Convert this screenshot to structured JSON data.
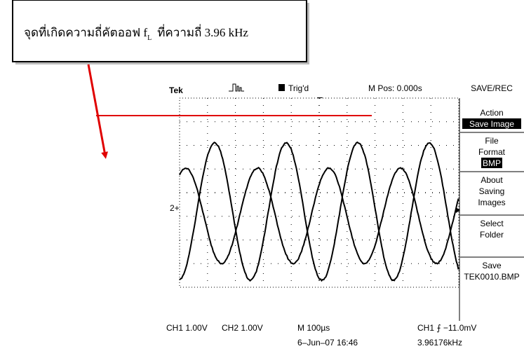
{
  "annotation": {
    "text_before": "จุดที่เกิดความถี่คัตออฟ f",
    "subscript": "L",
    "text_after": "ที่ความถี่ 3.96 kHz"
  },
  "scope": {
    "header": {
      "brand": "Tek",
      "trigger": "Trig'd",
      "position": "M Pos: 0.000s",
      "menu_title": "SAVE/REC"
    },
    "menu": [
      {
        "lines": [
          "Action"
        ],
        "highlight": "Save Image"
      },
      {
        "lines": [
          "File",
          "Format"
        ],
        "highlight": "BMP"
      },
      {
        "lines": [
          "About",
          "Saving",
          "Images"
        ]
      },
      {
        "lines": [
          "Select",
          "Folder"
        ]
      },
      {
        "lines": [
          "Save",
          "TEK0010.BMP"
        ]
      }
    ],
    "channel_marker": "2+",
    "footer": {
      "ch1": "CH1  1.00V",
      "ch2": "CH2  1.00V",
      "timebase": "M 100µs",
      "trigger_level": "CH1 ⨍ −11.0mV",
      "date": "6–Jun–07 16:46",
      "frequency": "3.96176kHz"
    }
  }
}
